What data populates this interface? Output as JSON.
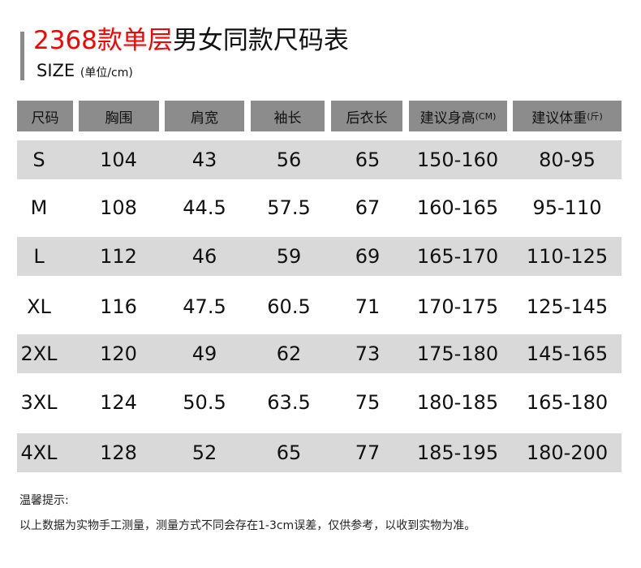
{
  "title": {
    "red": "2368款单层",
    "black": "男女同款尺码表"
  },
  "subtitle": {
    "main": "SIZE",
    "unit": "(单位/cm)"
  },
  "headers": [
    {
      "label": "尺码",
      "suffix": ""
    },
    {
      "label": "胸围",
      "suffix": ""
    },
    {
      "label": "肩宽",
      "suffix": ""
    },
    {
      "label": "袖长",
      "suffix": ""
    },
    {
      "label": "后衣长",
      "suffix": ""
    },
    {
      "label": "建议身高",
      "suffix": "(CM)"
    },
    {
      "label": "建议体重",
      "suffix": "(斤)"
    }
  ],
  "rows": [
    [
      "S",
      "104",
      "43",
      "56",
      "65",
      "150-160",
      "80-95"
    ],
    [
      "M",
      "108",
      "44.5",
      "57.5",
      "67",
      "160-165",
      "95-110"
    ],
    [
      "L",
      "112",
      "46",
      "59",
      "69",
      "165-170",
      "110-125"
    ],
    [
      "XL",
      "116",
      "47.5",
      "60.5",
      "71",
      "170-175",
      "125-145"
    ],
    [
      "2XL",
      "120",
      "49",
      "62",
      "73",
      "175-180",
      "145-165"
    ],
    [
      "3XL",
      "124",
      "50.5",
      "63.5",
      "75",
      "180-185",
      "165-180"
    ],
    [
      "4XL",
      "128",
      "52",
      "65",
      "77",
      "185-195",
      "180-200"
    ]
  ],
  "notes": {
    "heading": "温馨提示:",
    "text": "以上数据为实物手工测量，测量方式不同会存在1-3cm误差，仅供参考，以收到实物为准。"
  },
  "colors": {
    "accent": "#ff0000",
    "header_bg": "#8c8c8c",
    "band_bg": "#d9d9d9"
  }
}
